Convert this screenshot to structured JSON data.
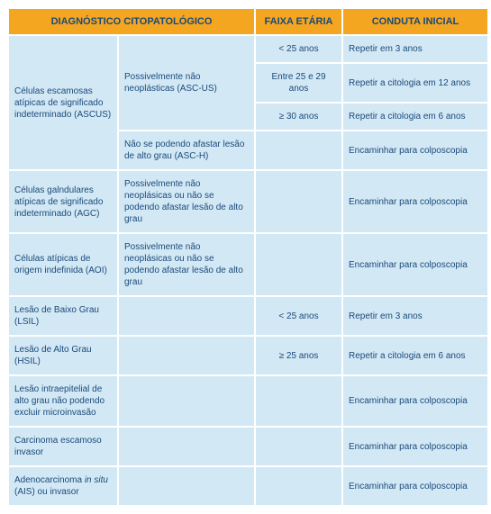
{
  "colors": {
    "header_bg": "#f4a621",
    "cell_bg": "#d3e8f5",
    "text": "#1a4a7a",
    "page_bg": "#ffffff"
  },
  "typography": {
    "header_fontsize": 11,
    "cell_fontsize": 10,
    "font_family": "Arial"
  },
  "headers": {
    "diag": "DIAGNÓSTICO CITOPATOLÓGICO",
    "age": "FAIXA ETÁRIA",
    "conduct": "CONDUTA INICIAL"
  },
  "rows": {
    "ascus_label": "Células escamosas atípicas de significado indeterminado (ASCUS)",
    "ascus_sub1": "Possivelmente não neoplásticas (ASC-US)",
    "ascus_age1": "< 25 anos",
    "ascus_cond1": "Repetir em 3 anos",
    "ascus_age2": "Entre 25 e 29 anos",
    "ascus_cond2": "Repetir a citologia em 12 anos",
    "ascus_age3": "≥ 30 anos",
    "ascus_cond3": "Repetir a citologia em 6 anos",
    "ascus_sub2": "Não se podendo afastar lesão de alto grau (ASC-H)",
    "ascus_cond4": "Encaminhar para colposcopia",
    "agc_label": "Células galndulares atípicas de significado indeterminado (AGC)",
    "agc_sub": "Possivelmente não neoplásicas ou não se podendo afastar lesão de alto grau",
    "agc_cond": "Encaminhar para colposcopia",
    "aoi_label": "Células atípicas de origem indefinida (AOI)",
    "aoi_sub": "Possivelmente não neoplásicas ou não se podendo afastar lesão de alto grau",
    "aoi_cond": "Encaminhar para colposcopia",
    "lsil_label": "Lesão de Baixo Grau (LSIL)",
    "lsil_age": "< 25 anos",
    "lsil_cond": "Repetir em 3 anos",
    "hsil_label": "Lesão de Alto Grau (HSIL)",
    "hsil_age": "≥ 25 anos",
    "hsil_cond": "Repetir a citologia em 6 anos",
    "micro_label": "Lesão intraepitelial de alto grau não podendo excluir microinvasão",
    "micro_cond": "Encaminhar para colposcopia",
    "carc_label": "Carcinoma escamoso invasor",
    "carc_cond": "Encaminhar para colposcopia",
    "ais_pre": "Adenocarcinoma ",
    "ais_it": "in situ",
    "ais_post": " (AIS) ou invasor",
    "ais_cond": "Encaminhar para colposcopia"
  }
}
